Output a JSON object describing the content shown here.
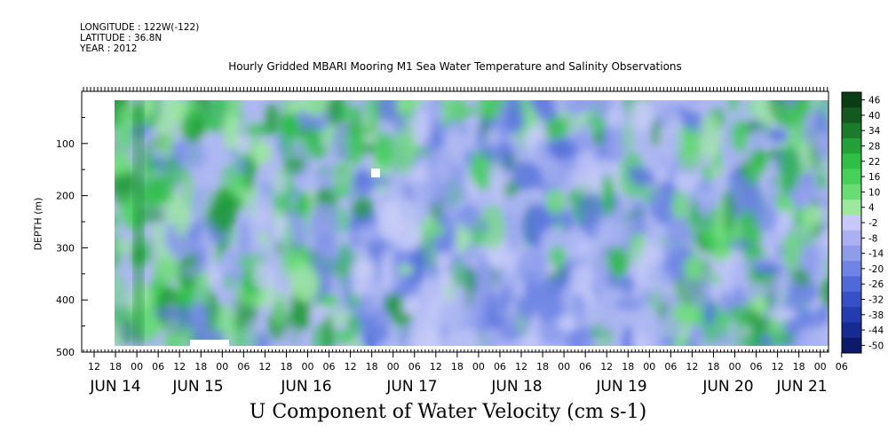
{
  "header": {
    "longitude": "LONGITUDE : 122W(-122)",
    "latitude": "LATITUDE : 36.8N",
    "year": "YEAR : 2012"
  },
  "chart_data": {
    "type": "heatmap",
    "title": "Hourly Gridded MBARI Mooring M1 Sea Water Temperature and Salinity Observations",
    "xlabel": "U Component of Water Velocity (cm s-1)",
    "ylabel": "DEPTH (m)",
    "y_ticks": [
      100,
      200,
      300,
      400,
      500
    ],
    "y_range": [
      0,
      500
    ],
    "y_inverted": true,
    "hour_tick_labels": [
      "12",
      "18",
      "00",
      "06",
      "12",
      "18",
      "00",
      "06",
      "12",
      "18",
      "00",
      "06",
      "12",
      "18",
      "00",
      "06",
      "12",
      "18",
      "00",
      "06",
      "12",
      "18",
      "00",
      "06",
      "12",
      "18",
      "00",
      "06",
      "12",
      "18",
      "00",
      "06",
      "12",
      "18",
      "00",
      "06"
    ],
    "date_labels": [
      "JUN 14",
      "JUN 15",
      "JUN 16",
      "JUN 17",
      "JUN 18",
      "JUN 19",
      "JUN 20",
      "JUN 21"
    ],
    "colorbar_labels": [
      "46",
      "40",
      "34",
      "28",
      "22",
      "16",
      "10",
      "4",
      "-2",
      "-8",
      "-14",
      "-20",
      "-26",
      "-32",
      "-38",
      "-44",
      "-50"
    ],
    "colorbar_colors": [
      "#0b3d14",
      "#145a20",
      "#1b7a2c",
      "#23a038",
      "#2fbf46",
      "#46d25a",
      "#68dd74",
      "#9ce89e",
      "#c8c8f8",
      "#aab0f0",
      "#8f9cea",
      "#6f84e4",
      "#4f6ad8",
      "#3651c8",
      "#243cb0",
      "#172a90",
      "#0d1a6a"
    ],
    "field_summary": {
      "panels": [
        {
          "x_from": "JUN 14 12",
          "x_to": "JUN 15 18",
          "sign": "positive"
        },
        {
          "x_from": "JUN 15 18",
          "x_to": "JUN 16 20",
          "sign": "positive"
        },
        {
          "x_from": "JUN 16 20",
          "x_to": "JUN 19 20",
          "sign": "negative"
        },
        {
          "x_from": "JUN 19 20",
          "x_to": "JUN 21 06",
          "sign": "mixed"
        }
      ]
    }
  }
}
